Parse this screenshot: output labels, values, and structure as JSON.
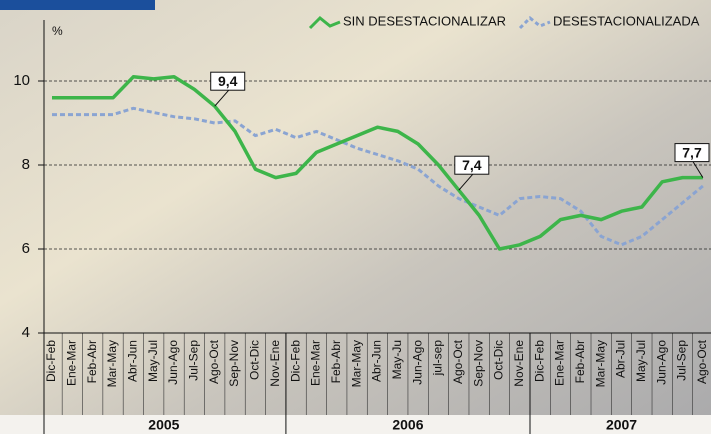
{
  "chart_data": {
    "type": "line",
    "y_label": "%",
    "category_groups": [
      {
        "label": "2005",
        "categories": [
          "Dic-Feb",
          "Ene-Mar",
          "Feb-Abr",
          "Mar-May",
          "Abr-Jun",
          "May-Jul",
          "Jun-Ago",
          "Jul-Sep",
          "Ago-Oct",
          "Sep-Nov",
          "Oct-Dic",
          "Nov-Ene"
        ]
      },
      {
        "label": "2006",
        "categories": [
          "Dic-Feb",
          "Ene-Mar",
          "Feb-Abr",
          "Mar-May",
          "Abr-Jun",
          "May-Ju",
          "Jun-Ago",
          "jul-sep",
          "Ago-Oct",
          "Sep-Nov",
          "Oct-Dic",
          "Nov-Ene"
        ]
      },
      {
        "label": "2007",
        "categories": [
          "Dic-Feb",
          "Ene-Mar",
          "Feb-Abr",
          "Mar-May",
          "Abr-Jul",
          "May-Jul",
          "Jun-Ago",
          "Jul-Sep",
          "Ago-Oct"
        ]
      }
    ],
    "series": [
      {
        "name": "SIN DESESTACIONALIZAR",
        "color": "#3db54a",
        "dashed": false,
        "values": [
          9.6,
          9.6,
          9.6,
          9.6,
          10.1,
          10.05,
          10.1,
          9.8,
          9.4,
          8.8,
          7.9,
          7.7,
          7.8,
          8.3,
          8.5,
          8.7,
          8.9,
          8.8,
          8.5,
          8.0,
          7.4,
          6.8,
          6.0,
          6.1,
          6.3,
          6.7,
          6.8,
          6.7,
          6.9,
          7.0,
          7.6,
          7.7,
          7.7
        ],
        "value_labels": [
          null,
          null,
          null,
          null,
          null,
          null,
          null,
          null,
          "9,4",
          null,
          null,
          null,
          null,
          null,
          null,
          null,
          null,
          null,
          null,
          null,
          "7,4",
          null,
          null,
          null,
          null,
          null,
          null,
          null,
          null,
          null,
          null,
          null,
          "7,7"
        ]
      },
      {
        "name": "DESESTACIONALIZADA",
        "color": "#8aa4d2",
        "dashed": true,
        "values": [
          9.2,
          9.2,
          9.2,
          9.2,
          9.35,
          9.25,
          9.15,
          9.1,
          9.0,
          9.05,
          8.7,
          8.85,
          8.65,
          8.8,
          8.6,
          8.4,
          8.25,
          8.1,
          7.9,
          7.5,
          7.2,
          7.0,
          6.8,
          7.2,
          7.25,
          7.2,
          6.9,
          6.3,
          6.1,
          6.3,
          6.7,
          7.1,
          7.5
        ]
      }
    ],
    "ylim": [
      4,
      11
    ],
    "yticks": [
      4,
      6,
      8,
      10
    ],
    "grid": true
  }
}
